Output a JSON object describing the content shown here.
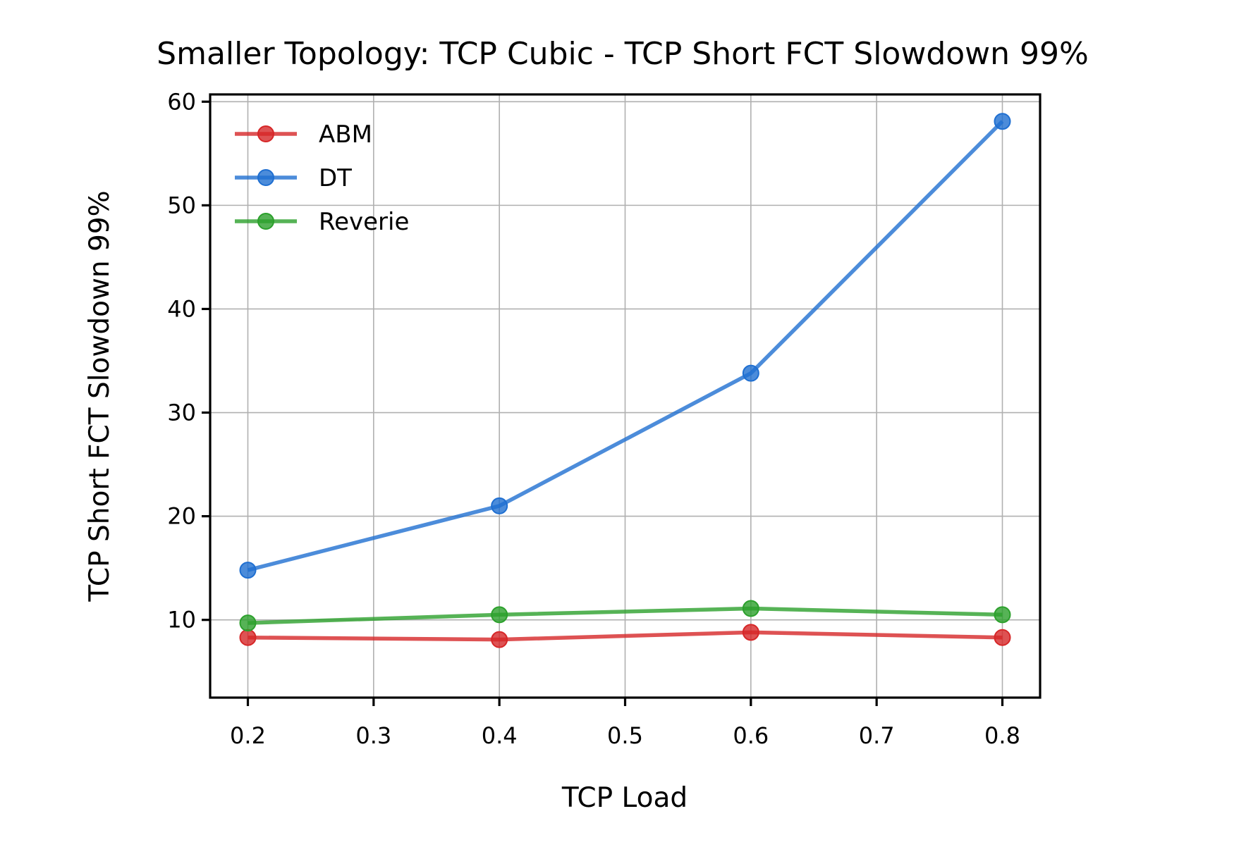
{
  "chart_data": {
    "type": "line",
    "title": "Smaller Topology: TCP Cubic - TCP Short FCT Slowdown 99%",
    "xlabel": "TCP Load",
    "ylabel": "TCP Short FCT Slowdown 99%",
    "xlim": [
      0.17,
      0.83
    ],
    "ylim": [
      2.5,
      60.7
    ],
    "xticks": [
      0.2,
      0.3,
      0.4,
      0.5,
      0.6,
      0.7,
      0.8
    ],
    "xtick_labels": [
      "0.2",
      "0.3",
      "0.4",
      "0.5",
      "0.6",
      "0.7",
      "0.8"
    ],
    "yticks": [
      10,
      20,
      30,
      40,
      50,
      60
    ],
    "ytick_labels": [
      "10",
      "20",
      "30",
      "40",
      "50",
      "60"
    ],
    "grid": true,
    "legend_position": "top-left",
    "x": [
      0.2,
      0.4,
      0.6,
      0.8
    ],
    "series": [
      {
        "name": "ABM",
        "color": "#d62728",
        "values": [
          8.3,
          8.1,
          8.8,
          8.3
        ]
      },
      {
        "name": "DT",
        "color": "#1f6fd1",
        "values": [
          14.8,
          21.0,
          33.8,
          58.1
        ]
      },
      {
        "name": "Reverie",
        "color": "#2ca02c",
        "values": [
          9.7,
          10.5,
          11.1,
          10.5
        ]
      }
    ]
  }
}
